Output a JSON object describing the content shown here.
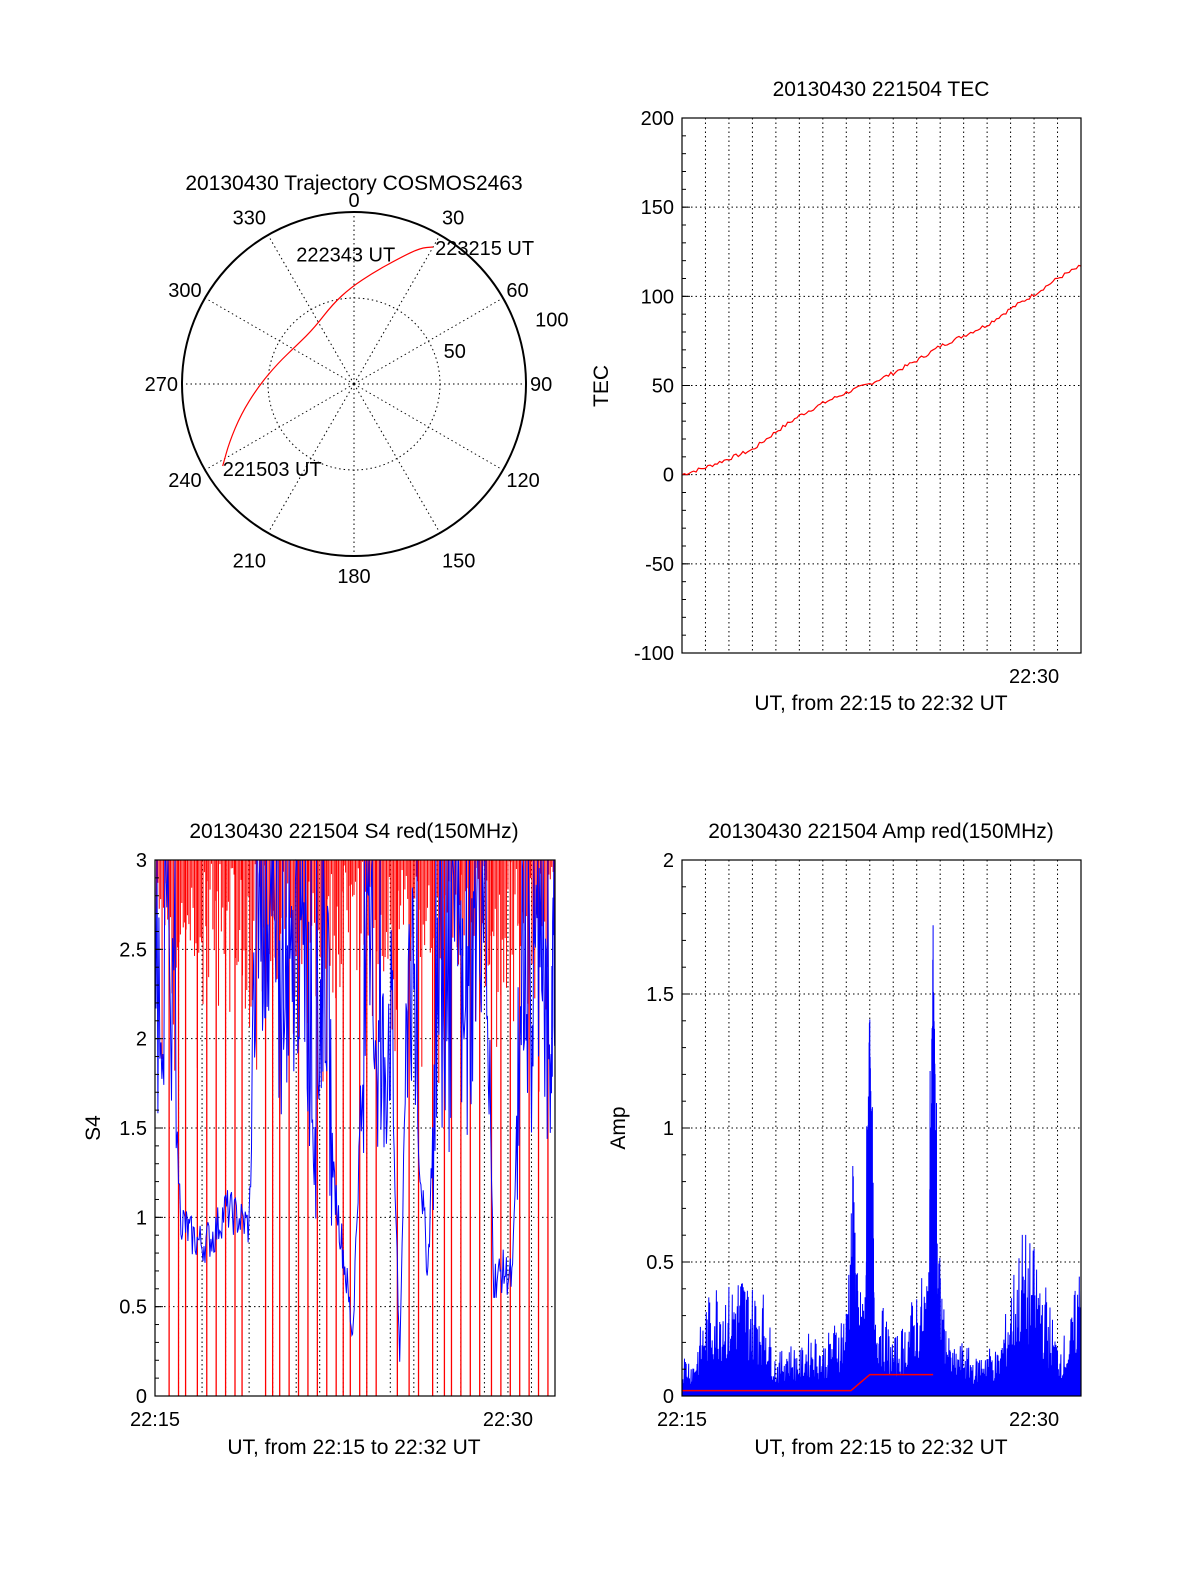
{
  "chart_data": [
    {
      "type": "polar",
      "title": "20130430 Trajectory COSMOS2463",
      "azimuth_labels": [
        "0",
        "30",
        "60",
        "90",
        "120",
        "150",
        "180",
        "210",
        "240",
        "270",
        "300",
        "330"
      ],
      "azimuth_values": [
        0,
        30,
        60,
        90,
        120,
        150,
        180,
        210,
        240,
        270,
        300,
        330
      ],
      "radial_labels": [
        "50",
        "100"
      ],
      "radial_values": [
        50,
        100
      ],
      "radial_max": 100,
      "trajectory": [
        [
          238,
          90
        ],
        [
          245,
          80
        ],
        [
          255,
          68
        ],
        [
          268,
          56
        ],
        [
          285,
          46
        ],
        [
          305,
          40
        ],
        [
          325,
          40
        ],
        [
          345,
          48
        ],
        [
          358,
          56
        ],
        [
          10,
          66
        ],
        [
          20,
          78
        ],
        [
          26,
          88
        ],
        [
          30,
          92
        ]
      ],
      "annotations": [
        {
          "text": "223215 UT",
          "az": 30,
          "r": 92
        },
        {
          "text": "222343 UT",
          "az": 356,
          "r": 48
        },
        {
          "text": "221503 UT",
          "az": 238,
          "r": 90
        }
      ],
      "colors": {
        "trajectory": "#ff0000"
      }
    },
    {
      "type": "line",
      "title": "20130430 221504 TEC",
      "xlabel": "UT, from 22:15 to 22:32 UT",
      "ylabel": "TEC",
      "xlim": [
        "22:15",
        "22:32"
      ],
      "ylim": [
        -100,
        200
      ],
      "yticks": [
        "-100",
        "-50",
        "0",
        "50",
        "100",
        "150",
        "200"
      ],
      "xticks": [
        "22:30"
      ],
      "series": [
        {
          "color": "#ff0000",
          "x": [
            "22:15",
            "22:16",
            "22:17",
            "22:18",
            "22:19",
            "22:20",
            "22:21",
            "22:22",
            "22:23",
            "22:24",
            "22:25",
            "22:26",
            "22:27",
            "22:28",
            "22:29",
            "22:30",
            "22:31",
            "22:32"
          ],
          "values": [
            0,
            4,
            9,
            14,
            24,
            33,
            40,
            46,
            51,
            57,
            64,
            72,
            78,
            84,
            93,
            101,
            110,
            117
          ]
        }
      ]
    },
    {
      "type": "line",
      "title": "20130430 221504 S4 red(150MHz)",
      "xlabel": "UT, from 22:15 to 22:32 UT",
      "ylabel": "S4",
      "xlim": [
        "22:15",
        "22:32"
      ],
      "ylim": [
        0,
        3
      ],
      "yticks": [
        "0",
        "0.5",
        "1",
        "1.5",
        "2",
        "2.5",
        "3"
      ],
      "xticks": [
        "22:15",
        "22:30"
      ],
      "series": [
        {
          "color": "#0000ff",
          "x_minutes": [
            0,
            0.5,
            1.1,
            1.5,
            2.0,
            2.5,
            3.0,
            3.5,
            4.0,
            4.4,
            4.8,
            5.2,
            5.6,
            6.0,
            6.4,
            6.8,
            7.2,
            7.6,
            8.0,
            8.4,
            8.8,
            9.2,
            9.6,
            10.0,
            10.4,
            10.8,
            11.2,
            11.6,
            12.0,
            12.4,
            12.8,
            13.2,
            13.6,
            14.0,
            14.4,
            14.8,
            15.2,
            15.6,
            16.0,
            16.4,
            16.8,
            17.0
          ],
          "values": [
            2.2,
            2.5,
            1.0,
            0.9,
            0.85,
            0.9,
            1.05,
            1.0,
            0.95,
            2.8,
            2.6,
            2.3,
            1.8,
            2.6,
            2.4,
            1.6,
            2.6,
            1.2,
            0.8,
            0.35,
            1.8,
            2.4,
            1.7,
            2.2,
            0.25,
            2.6,
            1.4,
            0.7,
            2.2,
            1.8,
            2.7,
            1.8,
            2.6,
            2.9,
            0.65,
            0.7,
            0.65,
            2.6,
            2.0,
            2.8,
            1.5,
            2.7
          ]
        },
        {
          "color": "#ff0000",
          "spikes_minutes": [
            0.6,
            1.0,
            1.3,
            1.8,
            2.2,
            2.6,
            3.0,
            3.4,
            3.7,
            4.7,
            5.0,
            5.3,
            5.7,
            6.1,
            6.5,
            6.9,
            7.3,
            7.7,
            8.0,
            8.3,
            8.7,
            9.0,
            9.4,
            10.3,
            10.8,
            11.2,
            11.8,
            12.3,
            12.6,
            13.0,
            13.4,
            13.8,
            14.3,
            14.7,
            15.1,
            15.5,
            15.9,
            16.3,
            16.7
          ],
          "note_values_top": 3
        }
      ]
    },
    {
      "type": "line",
      "title": "20130430 221504 Amp red(150MHz)",
      "xlabel": "UT, from 22:15 to 22:32 UT",
      "ylabel": "Amp",
      "xlim": [
        "22:15",
        "22:32"
      ],
      "ylim": [
        0,
        2
      ],
      "yticks": [
        "0",
        "0.5",
        "1",
        "1.5",
        "2"
      ],
      "xticks": [
        "22:15",
        "22:30"
      ],
      "series": [
        {
          "color": "#0000ff",
          "x_minutes": [
            0,
            0.5,
            1.0,
            1.5,
            2.0,
            2.5,
            3.0,
            3.5,
            4.0,
            4.5,
            5.0,
            5.5,
            6.0,
            6.5,
            7.0,
            7.3,
            7.5,
            7.8,
            8.0,
            8.2,
            8.5,
            9.0,
            9.5,
            10.0,
            10.5,
            10.7,
            10.9,
            11.2,
            11.5,
            12.0,
            12.5,
            13.0,
            13.5,
            14.0,
            14.5,
            15.0,
            15.5,
            16.0,
            16.5,
            17.0
          ],
          "values": [
            0.12,
            0.1,
            0.25,
            0.32,
            0.3,
            0.35,
            0.3,
            0.28,
            0.1,
            0.15,
            0.12,
            0.18,
            0.14,
            0.2,
            0.25,
            0.65,
            0.28,
            0.3,
            1.55,
            0.2,
            0.25,
            0.15,
            0.2,
            0.3,
            0.35,
            1.8,
            0.45,
            0.2,
            0.12,
            0.15,
            0.1,
            0.14,
            0.12,
            0.3,
            0.45,
            0.4,
            0.3,
            0.15,
            0.18,
            0.4
          ]
        },
        {
          "color": "#ff0000",
          "x_minutes": [
            0,
            7.2,
            8.0,
            10.7
          ],
          "values": [
            0.02,
            0.02,
            0.08,
            0.08
          ]
        }
      ]
    }
  ]
}
